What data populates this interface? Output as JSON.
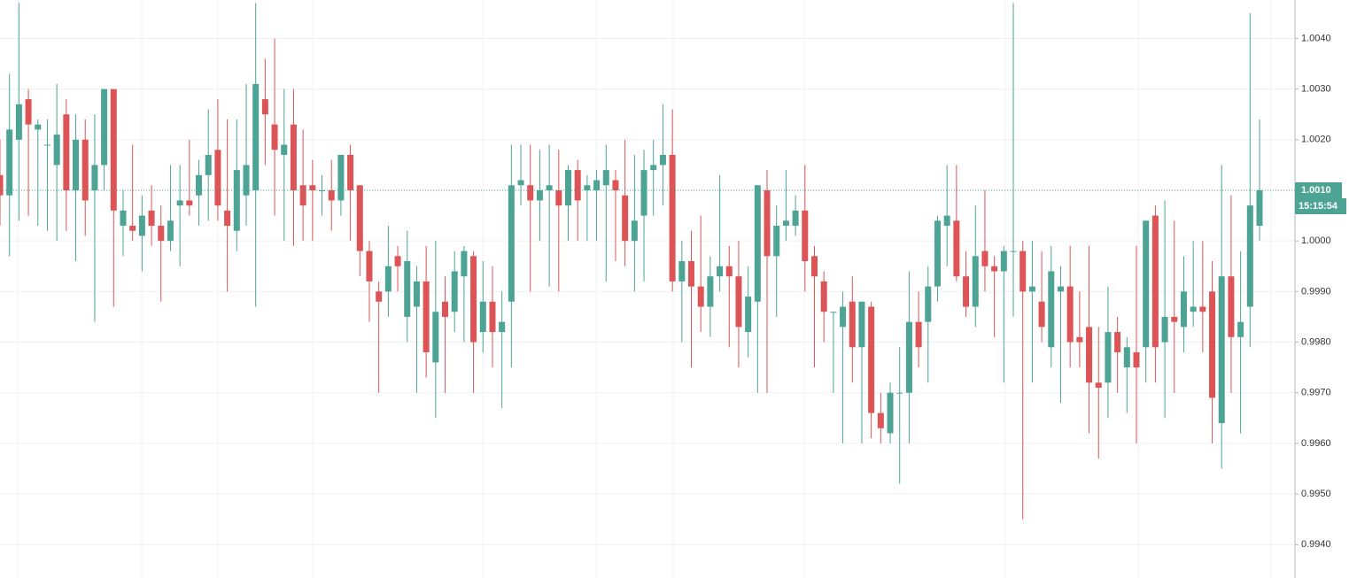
{
  "chart_data": {
    "type": "candlestick",
    "up_color": "#4da495",
    "down_color": "#dc5455",
    "grid": true,
    "ylim": [
      0.99334,
      1.00476
    ],
    "yticks": [
      {
        "value": 0.994,
        "label": "0.9940"
      },
      {
        "value": 0.995,
        "label": "0.9950"
      },
      {
        "value": 0.996,
        "label": "0.9960"
      },
      {
        "value": 0.997,
        "label": "0.9970"
      },
      {
        "value": 0.998,
        "label": "0.9980"
      },
      {
        "value": 0.999,
        "label": "0.9990"
      },
      {
        "value": 1.0,
        "label": "1.0000"
      },
      {
        "value": 1.001,
        "label": "1.0010"
      },
      {
        "value": 1.002,
        "label": "1.0020"
      },
      {
        "value": 1.003,
        "label": "1.0030"
      },
      {
        "value": 1.004,
        "label": "1.0040"
      }
    ],
    "price_label": "1.0010",
    "countdown": "15:15:54",
    "open": [
      1.0013,
      1.0009,
      1.002,
      1.0028,
      1.0022,
      1.0019,
      1.0015,
      1.0025,
      1.001,
      1.002,
      1.001,
      1.0015,
      1.003,
      1.0003,
      1.0003,
      1.0001,
      1.0006,
      1.0003,
      1.0,
      1.0007,
      1.0008,
      1.0009,
      1.0013,
      1.0018,
      1.0006,
      1.0002,
      1.0009,
      1.001,
      1.0028,
      1.0023,
      1.0017,
      1.0023,
      1.0011,
      1.0011,
      1.001,
      1.001,
      1.0008,
      1.0017,
      1.0011,
      0.9998,
      0.999,
      0.999,
      0.9997,
      0.9985,
      0.9987,
      0.9992,
      0.9976,
      0.9988,
      0.9986,
      0.9993,
      0.9997,
      0.9982,
      0.9988,
      0.9982,
      0.9988,
      1.0011,
      1.0011,
      1.0008,
      1.001,
      1.001,
      1.0007,
      1.0014,
      1.001,
      1.001,
      1.0011,
      1.0012,
      1.0009,
      1.0,
      1.0005,
      1.0014,
      1.0015,
      1.0017,
      0.9992,
      0.9996,
      0.9991,
      0.9987,
      0.9993,
      0.9995,
      0.9993,
      0.9982,
      0.9988,
      1.001,
      0.9997,
      1.0003,
      1.0003,
      1.0006,
      0.9997,
      0.9992,
      0.9986,
      0.9983,
      0.9988,
      0.9979,
      0.9987,
      0.9966,
      0.9962,
      0.997,
      0.997,
      0.9984,
      0.9984,
      0.9991,
      1.0003,
      1.0004,
      0.9993,
      0.9987,
      0.9998,
      0.9995,
      0.9994,
      0.9998,
      0.9998,
      0.999,
      0.9988,
      0.9979,
      0.999,
      0.9991,
      0.9981,
      0.9983,
      0.9972,
      0.9972,
      0.9982,
      0.9975,
      0.9978,
      0.9979,
      1.0005,
      0.998,
      0.9985,
      0.9983,
      0.9986,
      0.9987,
      0.999,
      0.9964,
      0.9993,
      0.9981,
      0.9987,
      1.0003
    ],
    "high": [
      1.002,
      1.0033,
      1.0047,
      1.003,
      1.0024,
      1.0024,
      1.0031,
      1.0028,
      1.0025,
      1.0024,
      1.0025,
      1.003,
      1.003,
      1.001,
      1.0019,
      1.0009,
      1.0011,
      1.0007,
      1.0015,
      1.0015,
      1.002,
      1.0016,
      1.0026,
      1.0028,
      1.0024,
      1.0024,
      1.0031,
      1.0047,
      1.0036,
      1.004,
      1.003,
      1.003,
      1.0022,
      1.0016,
      1.0013,
      1.0016,
      1.0017,
      1.0019,
      1.0011,
      1.0,
      0.9992,
      1.0003,
      0.9999,
      1.0002,
      0.9995,
      0.9999,
      1.0,
      0.9993,
      0.9998,
      0.9999,
      0.9998,
      0.9996,
      0.9995,
      0.999,
      1.0019,
      1.0019,
      1.0019,
      1.0018,
      1.0019,
      1.0018,
      1.0015,
      1.0016,
      1.0013,
      1.0014,
      1.0019,
      1.0014,
      1.002,
      1.0017,
      1.0018,
      1.002,
      1.0027,
      1.0026,
      1.0,
      1.0002,
      1.0005,
      0.9997,
      1.0013,
      0.9999,
      1.0,
      0.9995,
      1.0011,
      1.0014,
      1.0007,
      1.0014,
      1.0009,
      1.0015,
      0.9999,
      0.9994,
      0.9986,
      0.999,
      0.9993,
      0.9988,
      0.9988,
      0.997,
      0.9972,
      0.9979,
      0.9994,
      0.999,
      0.9995,
      1.0005,
      1.0015,
      1.0015,
      0.9998,
      1.0007,
      1.001,
      0.9997,
      0.9999,
      1.0047,
      1.0,
      1.0,
      0.9998,
      0.9999,
      0.9995,
      0.9999,
      0.999,
      0.9999,
      0.9983,
      0.9991,
      0.9985,
      0.9981,
      0.9999,
      1.0004,
      1.0007,
      1.0008,
      1.0004,
      0.9997,
      1.0,
      1.0,
      0.9996,
      1.0015,
      1.0009,
      0.9998,
      1.0045,
      1.0024
    ],
    "low": [
      1.0003,
      0.9997,
      1.0004,
      1.0005,
      1.0003,
      1.0002,
      1.0,
      1.0002,
      0.9996,
      1.0001,
      0.9984,
      1.001,
      0.9987,
      0.9997,
      1.0,
      0.9994,
      0.9999,
      0.9988,
      0.9998,
      0.9995,
      1.0005,
      1.0003,
      1.0004,
      1.0004,
      0.999,
      0.9998,
      1.0003,
      0.9987,
      1.0015,
      1.0005,
      1.0,
      0.9999,
      1.0,
      1.0,
      1.0005,
      1.0002,
      1.0005,
      1.0,
      0.9993,
      0.9984,
      0.997,
      0.9985,
      0.999,
      0.998,
      0.997,
      0.9973,
      0.9965,
      0.997,
      0.9982,
      0.998,
      0.997,
      0.9978,
      0.9975,
      0.9967,
      0.9975,
      1.0007,
      0.999,
      1.0,
      0.9991,
      0.999,
      1.0,
      1.0,
      1.0,
      1.0,
      0.9992,
      0.9996,
      0.9995,
      0.999,
      0.9992,
      1.0005,
      1.0007,
      0.999,
      0.998,
      0.9975,
      0.9982,
      0.9981,
      0.999,
      0.9979,
      0.9975,
      0.9977,
      0.997,
      0.997,
      0.9985,
      1.0,
      1.0001,
      0.999,
      0.9975,
      0.998,
      0.997,
      0.996,
      0.9972,
      0.996,
      0.9961,
      0.996,
      0.996,
      0.9952,
      0.996,
      0.9975,
      0.9972,
      0.9988,
      0.9995,
      0.9992,
      0.9985,
      0.9983,
      0.999,
      0.9981,
      0.9972,
      0.9985,
      0.9945,
      0.9972,
      0.998,
      0.9975,
      0.9968,
      0.9975,
      0.9975,
      0.9962,
      0.9957,
      0.9965,
      0.997,
      0.9966,
      0.996,
      0.9972,
      0.9972,
      0.9965,
      0.997,
      0.9978,
      0.9983,
      0.9978,
      0.996,
      0.9955,
      0.997,
      0.9962,
      0.9979,
      1.0
    ],
    "close": [
      1.0009,
      1.0022,
      1.0027,
      1.0023,
      1.0023,
      1.0019,
      1.0021,
      1.001,
      1.002,
      1.0008,
      1.0015,
      1.003,
      1.0006,
      1.0006,
      1.0002,
      1.0005,
      1.0003,
      1.0,
      1.0004,
      1.0008,
      1.0007,
      1.0013,
      1.0017,
      1.0007,
      1.0003,
      1.0014,
      1.0015,
      1.0031,
      1.0025,
      1.0018,
      1.0019,
      1.001,
      1.0007,
      1.001,
      1.001,
      1.0008,
      1.0017,
      1.001,
      0.9998,
      0.9992,
      0.9988,
      0.9995,
      0.9995,
      0.9996,
      0.9992,
      0.9978,
      0.9986,
      0.9985,
      0.9994,
      0.9998,
      0.998,
      0.9988,
      0.9982,
      0.9984,
      1.0011,
      1.0012,
      1.0008,
      1.001,
      1.0011,
      1.0007,
      1.0014,
      1.0008,
      1.0011,
      1.0012,
      1.0014,
      1.001,
      1.0,
      1.0004,
      1.0014,
      1.0015,
      1.0017,
      0.9992,
      0.9996,
      0.9991,
      0.9987,
      0.9993,
      0.9995,
      0.9993,
      0.9983,
      0.9989,
      1.0011,
      0.9997,
      1.0003,
      1.0004,
      1.0006,
      0.9996,
      0.9993,
      0.9986,
      0.9986,
      0.9987,
      0.9979,
      0.9988,
      0.9966,
      0.9963,
      0.997,
      0.997,
      0.9984,
      0.9979,
      0.9991,
      1.0004,
      1.0005,
      0.9993,
      0.9987,
      0.9997,
      0.9995,
      0.9994,
      0.9998,
      0.9998,
      0.999,
      0.9991,
      0.9983,
      0.9994,
      0.9991,
      0.998,
      0.998,
      0.9972,
      0.9971,
      0.9982,
      0.9978,
      0.9979,
      0.9975,
      1.0004,
      0.9979,
      0.9985,
      0.9984,
      0.999,
      0.9987,
      0.9986,
      0.9969,
      0.9993,
      0.9981,
      0.9984,
      1.0007,
      1.001
    ]
  }
}
